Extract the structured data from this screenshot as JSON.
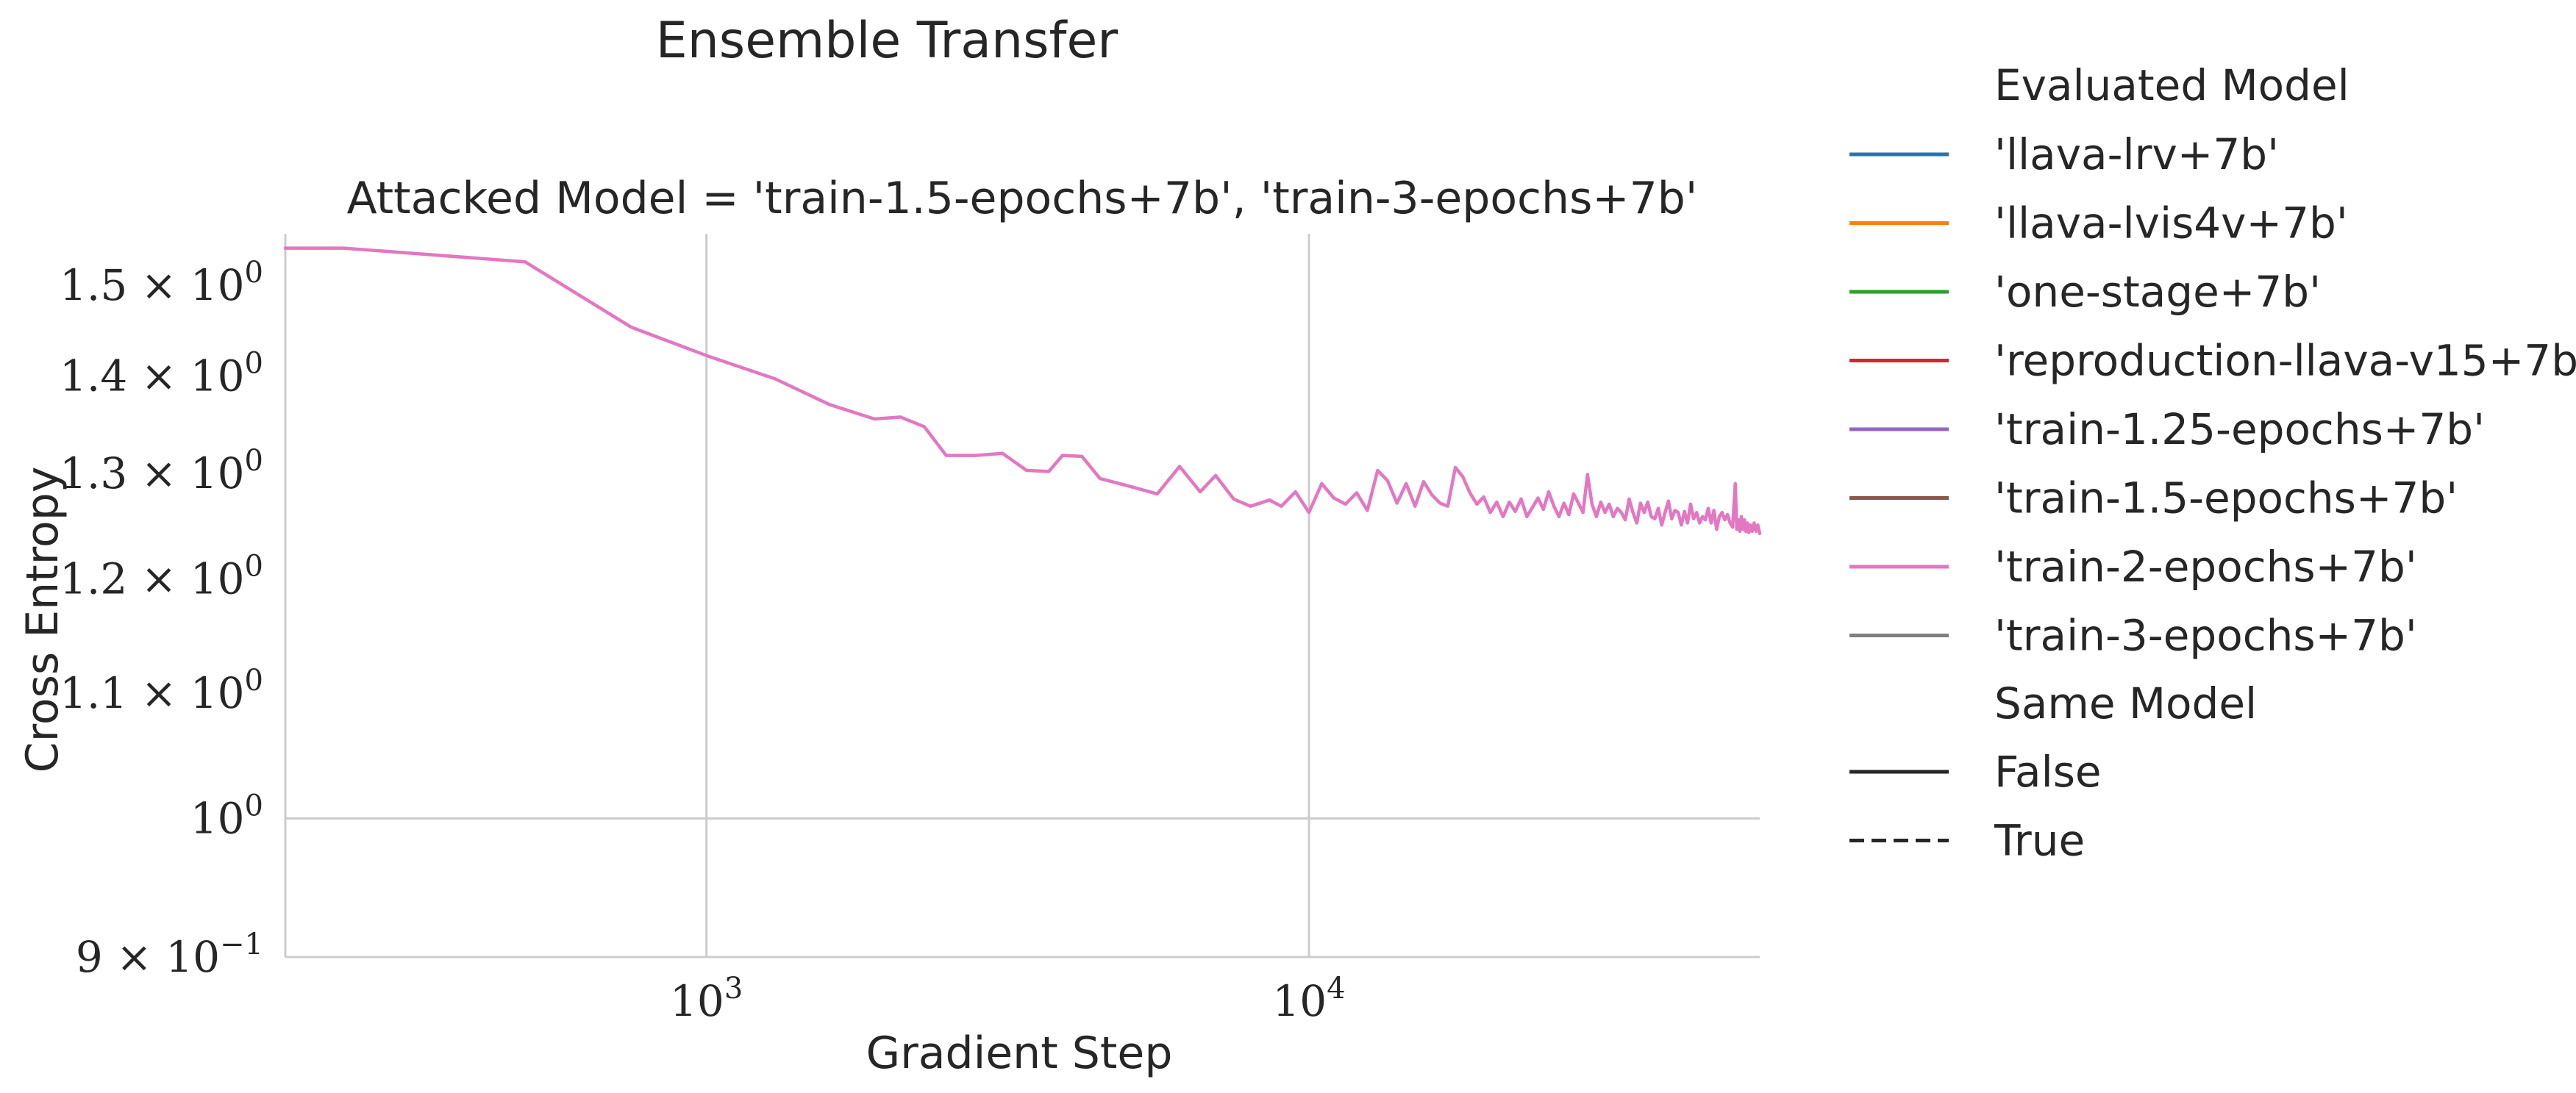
{
  "chart_data": {
    "type": "line",
    "suptitle": "Ensemble Transfer",
    "title": "Attacked Model = 'train-1.5-epochs+7b', 'train-3-epochs+7b'",
    "xlabel": "Gradient Step",
    "ylabel": "Cross Entropy",
    "xscale": "log",
    "yscale": "log",
    "xlim": [
      200,
      56000
    ],
    "ylim": [
      0.9,
      1.56
    ],
    "grid": "vertical",
    "x_ticks": [
      {
        "value": 1000,
        "base": "10",
        "exp": "3"
      },
      {
        "value": 10000,
        "base": "10",
        "exp": "4"
      }
    ],
    "y_ticks": [
      {
        "value": 1.5,
        "mant": "1.5 × 10",
        "exp": "0"
      },
      {
        "value": 1.4,
        "mant": "1.4 × 10",
        "exp": "0"
      },
      {
        "value": 1.3,
        "mant": "1.3 × 10",
        "exp": "0"
      },
      {
        "value": 1.2,
        "mant": "1.2 × 10",
        "exp": "0"
      },
      {
        "value": 1.1,
        "mant": "1.1 × 10",
        "exp": "0"
      },
      {
        "value": 1.0,
        "mant": "10",
        "exp": "0"
      },
      {
        "value": 0.9,
        "mant": "9 × 10",
        "exp": "−1"
      }
    ],
    "legend": {
      "placement": "right-outside",
      "hue_title": "Evaluated Model",
      "hue_entries": [
        {
          "label": "'llava-lrv+7b'",
          "color": "#1f77b4"
        },
        {
          "label": "'llava-lvis4v+7b'",
          "color": "#ff7f0e"
        },
        {
          "label": "'one-stage+7b'",
          "color": "#2ca02c"
        },
        {
          "label": "'reproduction-llava-v15+7b'",
          "color": "#d62728"
        },
        {
          "label": "'train-1.25-epochs+7b'",
          "color": "#9467bd"
        },
        {
          "label": "'train-1.5-epochs+7b'",
          "color": "#8c564b"
        },
        {
          "label": "'train-2-epochs+7b'",
          "color": "#e377c2"
        },
        {
          "label": "'train-3-epochs+7b'",
          "color": "#7f7f7f"
        }
      ],
      "style_title": "Same Model",
      "style_entries": [
        {
          "label": "False",
          "dash": "solid"
        },
        {
          "label": "True",
          "dash": "dashed"
        }
      ]
    },
    "series": [
      {
        "name": "'train-2-epochs+7b'",
        "same_model": "False",
        "color": "#e377c2",
        "points": [
          [
            200,
            1.543
          ],
          [
            250,
            1.543
          ],
          [
            500,
            1.527
          ],
          [
            750,
            1.453
          ],
          [
            1000,
            1.422
          ],
          [
            1300,
            1.397
          ],
          [
            1600,
            1.37
          ],
          [
            1900,
            1.355
          ],
          [
            2100,
            1.357
          ],
          [
            2300,
            1.347
          ],
          [
            2500,
            1.318
          ],
          [
            2800,
            1.318
          ],
          [
            3100,
            1.32
          ],
          [
            3400,
            1.303
          ],
          [
            3700,
            1.302
          ],
          [
            3900,
            1.318
          ],
          [
            4200,
            1.317
          ],
          [
            4500,
            1.295
          ],
          [
            5000,
            1.288
          ],
          [
            5600,
            1.28
          ],
          [
            6100,
            1.307
          ],
          [
            6600,
            1.282
          ],
          [
            7000,
            1.298
          ],
          [
            7500,
            1.275
          ],
          [
            8000,
            1.268
          ],
          [
            8600,
            1.274
          ],
          [
            9000,
            1.268
          ],
          [
            9500,
            1.282
          ],
          [
            10000,
            1.262
          ],
          [
            10500,
            1.29
          ],
          [
            11000,
            1.276
          ],
          [
            11500,
            1.27
          ],
          [
            12000,
            1.281
          ],
          [
            12500,
            1.264
          ],
          [
            13000,
            1.303
          ],
          [
            13500,
            1.293
          ],
          [
            14000,
            1.271
          ],
          [
            14500,
            1.29
          ],
          [
            15000,
            1.268
          ],
          [
            15500,
            1.292
          ],
          [
            16000,
            1.279
          ],
          [
            16500,
            1.271
          ],
          [
            17000,
            1.268
          ],
          [
            17500,
            1.306
          ],
          [
            18000,
            1.297
          ],
          [
            18500,
            1.281
          ],
          [
            19000,
            1.27
          ],
          [
            19500,
            1.277
          ],
          [
            20000,
            1.262
          ],
          [
            20500,
            1.272
          ],
          [
            21000,
            1.258
          ],
          [
            21500,
            1.272
          ],
          [
            22000,
            1.263
          ],
          [
            22500,
            1.275
          ],
          [
            23000,
            1.258
          ],
          [
            23500,
            1.267
          ],
          [
            24000,
            1.276
          ],
          [
            24500,
            1.265
          ],
          [
            25000,
            1.282
          ],
          [
            25500,
            1.268
          ],
          [
            26000,
            1.258
          ],
          [
            26500,
            1.271
          ],
          [
            27000,
            1.26
          ],
          [
            27500,
            1.28
          ],
          [
            28000,
            1.271
          ],
          [
            28500,
            1.262
          ],
          [
            29000,
            1.299
          ],
          [
            29500,
            1.27
          ],
          [
            30000,
            1.258
          ],
          [
            30500,
            1.272
          ],
          [
            31000,
            1.262
          ],
          [
            31500,
            1.27
          ],
          [
            32000,
            1.258
          ],
          [
            32500,
            1.266
          ],
          [
            33000,
            1.262
          ],
          [
            33500,
            1.255
          ],
          [
            34000,
            1.275
          ],
          [
            34500,
            1.262
          ],
          [
            35000,
            1.252
          ],
          [
            35500,
            1.271
          ],
          [
            36000,
            1.262
          ],
          [
            36500,
            1.272
          ],
          [
            37000,
            1.258
          ],
          [
            37500,
            1.256
          ],
          [
            38000,
            1.266
          ],
          [
            38500,
            1.25
          ],
          [
            39000,
            1.262
          ],
          [
            39500,
            1.273
          ],
          [
            40000,
            1.256
          ],
          [
            40500,
            1.264
          ],
          [
            41000,
            1.262
          ],
          [
            41500,
            1.25
          ],
          [
            42000,
            1.263
          ],
          [
            42500,
            1.252
          ],
          [
            43000,
            1.27
          ],
          [
            43500,
            1.256
          ],
          [
            44000,
            1.262
          ],
          [
            44500,
            1.252
          ],
          [
            45000,
            1.258
          ],
          [
            45500,
            1.255
          ],
          [
            46000,
            1.266
          ],
          [
            46500,
            1.252
          ],
          [
            47000,
            1.264
          ],
          [
            47500,
            1.246
          ],
          [
            48000,
            1.258
          ],
          [
            48500,
            1.262
          ],
          [
            49000,
            1.255
          ],
          [
            49500,
            1.26
          ],
          [
            50000,
            1.252
          ],
          [
            50500,
            1.248
          ],
          [
            51000,
            1.29
          ],
          [
            51300,
            1.246
          ],
          [
            51600,
            1.255
          ],
          [
            51900,
            1.244
          ],
          [
            52200,
            1.258
          ],
          [
            52500,
            1.246
          ],
          [
            52800,
            1.255
          ],
          [
            53100,
            1.244
          ],
          [
            53400,
            1.252
          ],
          [
            53700,
            1.243
          ],
          [
            54000,
            1.25
          ],
          [
            54400,
            1.244
          ],
          [
            54800,
            1.252
          ],
          [
            55200,
            1.244
          ],
          [
            55600,
            1.25
          ],
          [
            56000,
            1.242
          ]
        ]
      }
    ]
  }
}
